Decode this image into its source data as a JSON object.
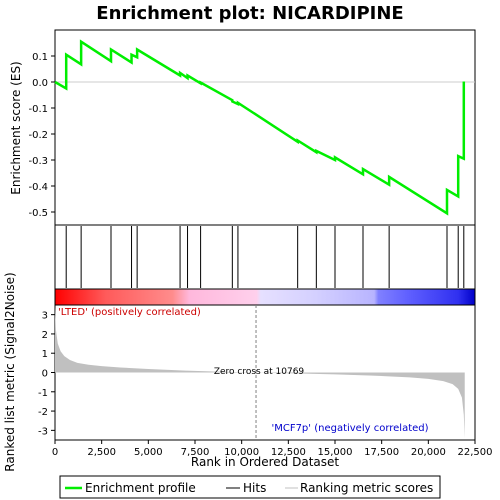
{
  "title": "Enrichment plot: NICARDIPINE",
  "colors": {
    "curve": "#00ee00",
    "hit": "#000000",
    "metric_fill": "#c0c0c0",
    "zero_line": "#808080",
    "pos_strong": "#ff0000",
    "neutral": "#ffffff",
    "neg_strong": "#0000ff"
  },
  "chart_data": [
    {
      "type": "line",
      "name": "enrichment-profile",
      "ylabel": "Enrichment score (ES)",
      "xlim": [
        0,
        22500
      ],
      "ylim": [
        -0.55,
        0.2
      ],
      "yticks": [
        0.1,
        0.0,
        -0.1,
        -0.2,
        -0.3,
        -0.4,
        -0.5
      ],
      "ytick_labels": [
        "0.1",
        "0.0",
        "-0.1",
        "-0.2",
        "-0.3",
        "-0.4",
        "-0.5"
      ],
      "x": [
        0,
        600,
        600,
        1400,
        1400,
        3000,
        3000,
        4100,
        4100,
        4400,
        4400,
        6700,
        6700,
        7100,
        7100,
        7800,
        7800,
        9500,
        9500,
        9800,
        9800,
        13000,
        13000,
        14000,
        14000,
        15000,
        15000,
        16500,
        16500,
        17900,
        17900,
        21000,
        21000,
        21600,
        21600,
        21900,
        21900
      ],
      "y": [
        0.0,
        -0.025,
        0.105,
        0.068,
        0.155,
        0.08,
        0.125,
        0.075,
        0.105,
        0.095,
        0.125,
        0.025,
        0.035,
        0.015,
        0.025,
        -0.005,
        -0.002,
        -0.07,
        -0.075,
        -0.085,
        -0.08,
        -0.23,
        -0.225,
        -0.27,
        -0.265,
        -0.3,
        -0.29,
        -0.355,
        -0.335,
        -0.395,
        -0.365,
        -0.505,
        -0.415,
        -0.44,
        -0.285,
        -0.295,
        0.002
      ]
    },
    {
      "type": "scatter",
      "name": "hits",
      "x": [
        600,
        1400,
        3000,
        4100,
        4400,
        6700,
        7100,
        7800,
        9500,
        9800,
        13000,
        14000,
        15000,
        16500,
        17900,
        21000,
        21600,
        21900
      ]
    },
    {
      "type": "area",
      "name": "ranking-metric",
      "xlabel": "Rank in Ordered Dataset",
      "ylabel": "Ranked list metric (Signal2Noise)",
      "xlim": [
        0,
        22500
      ],
      "ylim": [
        -3.5,
        3.5
      ],
      "xticks": [
        0,
        2500,
        5000,
        7500,
        10000,
        12500,
        15000,
        17500,
        20000,
        22500
      ],
      "xtick_labels": [
        "0",
        "2,500",
        "5,000",
        "7,500",
        "10,000",
        "12,500",
        "15,000",
        "17,500",
        "20,000",
        "22,500"
      ],
      "yticks": [
        3,
        2,
        1,
        0,
        -1,
        -2,
        -3
      ],
      "ytick_labels": [
        "3",
        "2",
        "1",
        "0",
        "-1",
        "-2",
        "-3"
      ],
      "x": [
        0,
        50,
        150,
        300,
        500,
        800,
        1200,
        1800,
        2500,
        3500,
        5000,
        7000,
        9000,
        10769,
        12500,
        15000,
        17000,
        19000,
        20000,
        20800,
        21300,
        21600,
        21800,
        21900,
        21950
      ],
      "y": [
        3.4,
        2.2,
        1.5,
        1.1,
        0.85,
        0.65,
        0.5,
        0.4,
        0.33,
        0.26,
        0.18,
        0.1,
        0.04,
        0.0,
        -0.04,
        -0.1,
        -0.16,
        -0.25,
        -0.33,
        -0.45,
        -0.6,
        -0.85,
        -1.3,
        -2.2,
        -3.4
      ],
      "zero_cross": 10769,
      "zero_cross_label": "Zero cross at 10769",
      "pos_label": "'LTED' (positively correlated)",
      "neg_label": "'MCF7p' (negatively correlated)"
    }
  ],
  "legend": {
    "items": [
      {
        "label": "Enrichment profile",
        "color": "#00ee00"
      },
      {
        "label": "Hits",
        "color": "#000000"
      },
      {
        "label": "Ranking metric scores",
        "color": "#c0c0c0"
      }
    ]
  }
}
